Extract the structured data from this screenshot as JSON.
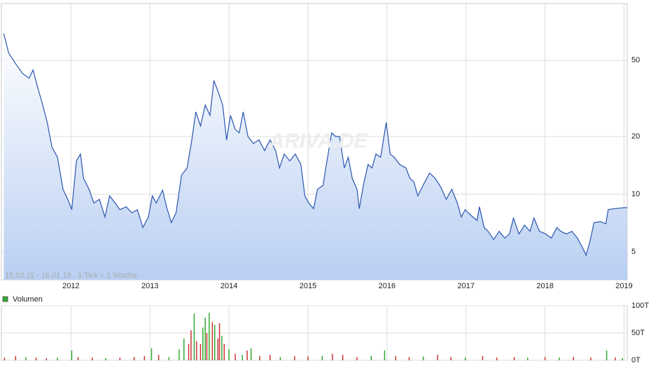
{
  "chart_data": [
    {
      "type": "line",
      "subtitle": "15.02.11 - 16.01.19",
      "note": "1 Tick = 1 Woche",
      "watermark": "ARIVA.DE",
      "log_scale": true,
      "grid": true,
      "color": "#2a55b0",
      "xlim": [
        2011.12,
        2019.04
      ],
      "xticks": [
        2012,
        2013,
        2014,
        2015,
        2016,
        2017,
        2018,
        2019
      ],
      "ylim": [
        3.57,
        99
      ],
      "yticks": [
        5,
        10,
        20,
        50
      ],
      "x": [
        2011.15,
        2011.21,
        2011.3,
        2011.39,
        2011.47,
        2011.52,
        2011.58,
        2011.63,
        2011.7,
        2011.76,
        2011.83,
        2011.9,
        2011.96,
        2012.01,
        2012.07,
        2012.12,
        2012.16,
        2012.23,
        2012.29,
        2012.36,
        2012.43,
        2012.49,
        2012.56,
        2012.62,
        2012.7,
        2012.77,
        2012.84,
        2012.91,
        2012.98,
        2013.03,
        2013.08,
        2013.16,
        2013.21,
        2013.27,
        2013.33,
        2013.4,
        2013.47,
        2013.53,
        2013.58,
        2013.64,
        2013.7,
        2013.76,
        2013.81,
        2013.86,
        2013.92,
        2013.97,
        2014.02,
        2014.08,
        2014.13,
        2014.18,
        2014.24,
        2014.31,
        2014.38,
        2014.45,
        2014.52,
        2014.59,
        2014.64,
        2014.7,
        2014.77,
        2014.84,
        2014.91,
        2014.96,
        2015.01,
        2015.07,
        2015.12,
        2015.19,
        2015.24,
        2015.3,
        2015.35,
        2015.4,
        2015.46,
        2015.51,
        2015.56,
        2015.62,
        2015.65,
        2015.7,
        2015.76,
        2015.81,
        2015.86,
        2015.92,
        2015.99,
        2016.04,
        2016.09,
        2016.16,
        2016.24,
        2016.29,
        2016.34,
        2016.39,
        2016.47,
        2016.54,
        2016.61,
        2016.68,
        2016.75,
        2016.82,
        2016.89,
        2016.94,
        2016.99,
        2017.07,
        2017.14,
        2017.17,
        2017.23,
        2017.28,
        2017.35,
        2017.42,
        2017.49,
        2017.55,
        2017.6,
        2017.67,
        2017.74,
        2017.81,
        2017.86,
        2017.93,
        2018.01,
        2018.08,
        2018.15,
        2018.2,
        2018.27,
        2018.34,
        2018.41,
        2018.47,
        2018.52,
        2018.57,
        2018.62,
        2018.7,
        2018.77,
        2018.8,
        2018.87,
        2018.99,
        2019.04
      ],
      "values": [
        69,
        54.8,
        48,
        42.6,
        40.3,
        44.5,
        36,
        30.5,
        23.7,
        17.6,
        15.6,
        10.6,
        9.4,
        8.3,
        14.9,
        16.2,
        12.1,
        10.6,
        9.0,
        9.4,
        7.6,
        9.8,
        9.0,
        8.3,
        8.6,
        8.0,
        8.3,
        6.7,
        7.6,
        9.8,
        9.0,
        10.5,
        8.6,
        7.1,
        8.0,
        12.6,
        13.7,
        19.2,
        26.9,
        22.7,
        29.2,
        25.8,
        39.2,
        34.5,
        29.2,
        19.2,
        25.8,
        21.8,
        20.9,
        26.9,
        20,
        18.4,
        19.2,
        16.9,
        19.2,
        16.9,
        13.7,
        16.2,
        14.9,
        16.2,
        14.3,
        9.8,
        9.0,
        8.4,
        10.6,
        11.1,
        14.9,
        20.9,
        20,
        20,
        13.7,
        15.6,
        12.1,
        10.6,
        8.4,
        11.1,
        14.3,
        13.7,
        16.2,
        15.6,
        23.7,
        16.2,
        15.6,
        14.3,
        13.7,
        12.1,
        11.6,
        9.8,
        11.4,
        12.9,
        12.1,
        10.9,
        9.4,
        10.6,
        9.0,
        7.6,
        8.3,
        7.7,
        7.3,
        8.6,
        6.7,
        6.4,
        5.8,
        6.4,
        5.9,
        6.2,
        7.5,
        6.2,
        6.9,
        6.4,
        7.5,
        6.4,
        6.2,
        5.9,
        6.7,
        6.4,
        6.2,
        6.4,
        5.9,
        5.3,
        4.8,
        5.7,
        7.1,
        7.2,
        7.0,
        8.3,
        8.4,
        8.5,
        8.5
      ]
    },
    {
      "type": "bar",
      "xlim": [
        2011.12,
        2019.04
      ],
      "ylim": [
        0,
        100000
      ],
      "yticks": [
        {
          "value": 0,
          "label": "0T"
        },
        {
          "value": 50000,
          "label": "50T"
        },
        {
          "value": 100000,
          "label": "100T"
        }
      ],
      "series": [
        {
          "name": "Volumen",
          "color": "#33aa33",
          "x": [
            2011.16,
            2011.3,
            2011.43,
            2011.56,
            2011.69,
            2011.83,
            2012.01,
            2012.09,
            2012.27,
            2012.44,
            2012.62,
            2012.8,
            2012.93,
            2013.02,
            2013.11,
            2013.24,
            2013.37,
            2013.43,
            2013.49,
            2013.52,
            2013.56,
            2013.59,
            2013.64,
            2013.67,
            2013.7,
            2013.72,
            2013.75,
            2013.79,
            2013.82,
            2013.86,
            2013.88,
            2013.91,
            2013.94,
            2014.0,
            2014.08,
            2014.17,
            2014.23,
            2014.28,
            2014.39,
            2014.52,
            2014.65,
            2014.83,
            2015.0,
            2015.18,
            2015.31,
            2015.44,
            2015.62,
            2015.8,
            2015.97,
            2016.11,
            2016.28,
            2016.46,
            2016.64,
            2016.81,
            2016.99,
            2017.21,
            2017.39,
            2017.61,
            2017.78,
            2018.0,
            2018.18,
            2018.36,
            2018.58,
            2018.78,
            2018.89,
            2018.98
          ],
          "values": [
            5000,
            8000,
            6000,
            5000,
            4000,
            5000,
            18000,
            6000,
            5000,
            4000,
            5000,
            6000,
            8000,
            22000,
            10000,
            6000,
            20000,
            40000,
            30000,
            55000,
            86000,
            35000,
            30000,
            60000,
            78000,
            50000,
            87000,
            70000,
            65000,
            40000,
            68000,
            45000,
            30000,
            20000,
            12000,
            10000,
            18000,
            22000,
            8000,
            10000,
            6000,
            8000,
            7000,
            8000,
            12000,
            10000,
            6000,
            8000,
            18000,
            8000,
            6000,
            7000,
            10000,
            6000,
            5000,
            8000,
            5000,
            6000,
            5000,
            6000,
            5000,
            6000,
            5000,
            18000,
            5000,
            4000
          ],
          "colors": [
            "#cc3333",
            "#cc3333",
            "#33aa33",
            "#cc3333",
            "#cc3333",
            "#33aa33",
            "#33aa33",
            "#cc3333",
            "#cc3333",
            "#33aa33",
            "#cc3333",
            "#cc3333",
            "#cc3333",
            "#33aa33",
            "#cc3333",
            "#33aa33",
            "#33aa33",
            "#33aa33",
            "#cc3333",
            "#cc3333",
            "#33aa33",
            "#cc3333",
            "#cc3333",
            "#33aa33",
            "#33aa33",
            "#cc3333",
            "#33aa33",
            "#cc3333",
            "#33aa33",
            "#cc3333",
            "#cc3333",
            "#33aa33",
            "#cc3333",
            "#33aa33",
            "#cc3333",
            "#33aa33",
            "#cc3333",
            "#33aa33",
            "#cc3333",
            "#cc3333",
            "#33aa33",
            "#cc3333",
            "#cc3333",
            "#33aa33",
            "#cc3333",
            "#cc3333",
            "#cc3333",
            "#33aa33",
            "#33aa33",
            "#cc3333",
            "#cc3333",
            "#33aa33",
            "#cc3333",
            "#cc3333",
            "#33aa33",
            "#cc3333",
            "#cc3333",
            "#cc3333",
            "#33aa33",
            "#cc3333",
            "#33aa33",
            "#cc3333",
            "#cc3333",
            "#33aa33",
            "#cc3333",
            "#33aa33"
          ]
        }
      ]
    }
  ]
}
